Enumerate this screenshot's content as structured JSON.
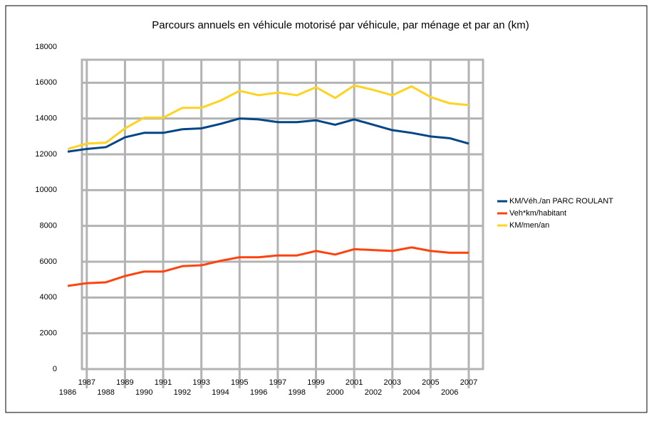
{
  "chart_data": {
    "type": "line",
    "title": "Parcours annuels en véhicule motorisé par véhicule, par ménage et par an (km)",
    "categories": [
      "1986",
      "1987",
      "1988",
      "1989",
      "1990",
      "1991",
      "1992",
      "1993",
      "1994",
      "1995",
      "1996",
      "1997",
      "1998",
      "1999",
      "2000",
      "2001",
      "2002",
      "2003",
      "2004",
      "2005",
      "2006",
      "2007"
    ],
    "series": [
      {
        "name": "KM/Véh./an PARC ROULANT",
        "color": "#004586",
        "values": [
          12150,
          12300,
          12400,
          12950,
          13200,
          13200,
          13400,
          13450,
          13700,
          14000,
          13950,
          13800,
          13800,
          13900,
          13650,
          13950,
          13650,
          13350,
          13200,
          13000,
          12900,
          12600
        ]
      },
      {
        "name": "Veh*km/habitant",
        "color": "#ff420e",
        "values": [
          4650,
          4800,
          4850,
          5200,
          5450,
          5450,
          5750,
          5800,
          6050,
          6250,
          6250,
          6350,
          6350,
          6600,
          6400,
          6700,
          6650,
          6600,
          6800,
          6600,
          6500,
          6500
        ]
      },
      {
        "name": "KM/men/an",
        "color": "#ffd320",
        "values": [
          12300,
          12600,
          12650,
          13450,
          14050,
          14050,
          14600,
          14600,
          15000,
          15550,
          15300,
          15450,
          15300,
          15750,
          15150,
          15850,
          15600,
          15300,
          15800,
          15200,
          14850,
          14750
        ]
      }
    ],
    "ylim": [
      0,
      18000
    ],
    "yticks": [
      0,
      2000,
      4000,
      6000,
      8000,
      10000,
      12000,
      14000,
      16000,
      18000
    ],
    "grid": true,
    "legend": "right"
  }
}
